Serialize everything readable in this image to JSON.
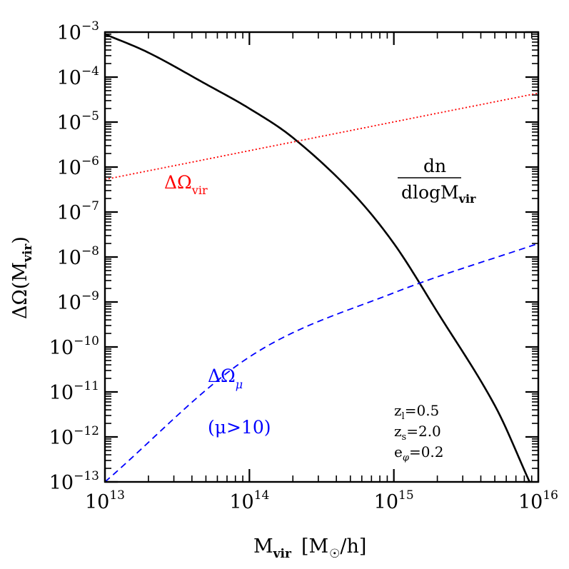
{
  "chart_data": {
    "type": "line",
    "xscale": "log",
    "yscale": "log",
    "xlim": [
      10000000000000.0,
      1e+16
    ],
    "ylim": [
      1e-13,
      0.001
    ],
    "xlabel": {
      "main": "M",
      "sub": "vir",
      "unit_open": "[M",
      "unit_tail": "/h]"
    },
    "ylabel": {
      "main": "ΔΩ(M",
      "sub": "vir",
      "close": ")"
    },
    "x_ticks": [
      {
        "base": "10",
        "exp": "13"
      },
      {
        "base": "10",
        "exp": "14"
      },
      {
        "base": "10",
        "exp": "15"
      },
      {
        "base": "10",
        "exp": "16"
      }
    ],
    "y_ticks": [
      {
        "base": "10",
        "exp": "−3"
      },
      {
        "base": "10",
        "exp": "−4"
      },
      {
        "base": "10",
        "exp": "−5"
      },
      {
        "base": "10",
        "exp": "−6"
      },
      {
        "base": "10",
        "exp": "−7"
      },
      {
        "base": "10",
        "exp": "−8"
      },
      {
        "base": "10",
        "exp": "−9"
      },
      {
        "base": "10",
        "exp": "−10"
      },
      {
        "base": "10",
        "exp": "−11"
      },
      {
        "base": "10",
        "exp": "−12"
      },
      {
        "base": "10",
        "exp": "−13"
      }
    ],
    "series": [
      {
        "color": "#000000",
        "style": "solid",
        "x": [
          10000000000000.0,
          20000000000000.0,
          50000000000000.0,
          100000000000000.0,
          200000000000000.0,
          500000000000000.0,
          1000000000000000.0,
          2000000000000000.0,
          5000000000000000.0,
          8700000000000000.0
        ],
        "y": [
          0.0009,
          0.00035,
          7e-05,
          2e-05,
          4.5e-06,
          3e-07,
          2e-08,
          6e-10,
          5e-12,
          1e-13
        ]
      },
      {
        "color": "#ff0000",
        "style": "dotted",
        "x": [
          10000000000000.0,
          1e+16
        ],
        "y": [
          5.3e-07,
          4.4e-05
        ]
      },
      {
        "color": "#0000ff",
        "style": "dashed",
        "x": [
          10000000000000.0,
          100000000000000.0,
          1000000000000000.0,
          1e+16
        ],
        "y": [
          1e-13,
          6e-11,
          1.6e-09,
          2e-08
        ]
      }
    ],
    "annotations": [
      {
        "name": "annotation-omega-vir",
        "color": "#ff0000",
        "main": "ΔΩ",
        "sub": "vir"
      },
      {
        "name": "annotation-omega-mu",
        "color": "#0000ff",
        "main": "ΔΩ",
        "sub": "μ"
      },
      {
        "name": "annotation-mu-condition",
        "color": "#0000ff",
        "main": "(μ>10)"
      },
      {
        "name": "annotation-mass-function",
        "color": "#000000",
        "numerator": "dn",
        "denominator": "dlogM",
        "sub": "vir"
      }
    ],
    "parameters": [
      {
        "main": "z",
        "sub": "l",
        "value": "=0.5"
      },
      {
        "main": "z",
        "sub": "s",
        "value": "=2.0"
      },
      {
        "main": "e",
        "sub": "φ",
        "value": "=0.2"
      }
    ]
  }
}
